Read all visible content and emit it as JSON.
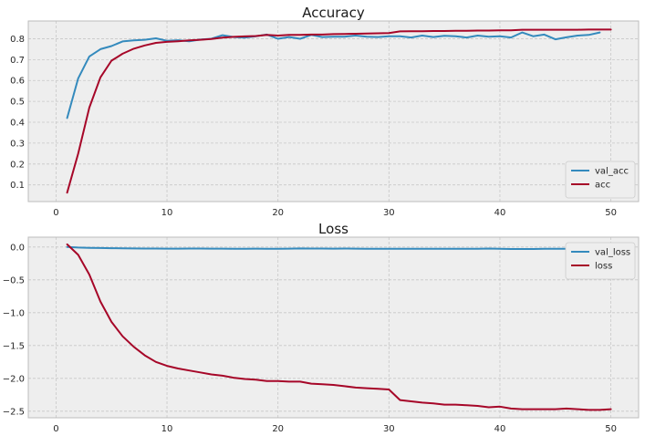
{
  "chart_data": [
    {
      "type": "line",
      "title": "Accuracy",
      "xlabel": "",
      "ylabel": "",
      "xlim": [
        -2.5,
        52.5
      ],
      "ylim": [
        0.02,
        0.885
      ],
      "xticks": [
        0,
        10,
        20,
        30,
        40,
        50
      ],
      "yticks": [
        0.1,
        0.2,
        0.3,
        0.4,
        0.5,
        0.6,
        0.7,
        0.8
      ],
      "grid": true,
      "legend": "bottom-right",
      "series": [
        {
          "name": "val_acc",
          "color": "#348abd",
          "x": [
            1,
            2,
            3,
            4,
            5,
            6,
            7,
            8,
            9,
            10,
            11,
            12,
            13,
            14,
            15,
            16,
            17,
            18,
            19,
            20,
            21,
            22,
            23,
            24,
            25,
            26,
            27,
            28,
            29,
            30,
            31,
            32,
            33,
            34,
            35,
            36,
            37,
            38,
            39,
            40,
            41,
            42,
            43,
            44,
            45,
            46,
            47,
            48,
            49
          ],
          "y": [
            0.42,
            0.61,
            0.715,
            0.75,
            0.765,
            0.787,
            0.792,
            0.795,
            0.802,
            0.79,
            0.793,
            0.788,
            0.796,
            0.8,
            0.817,
            0.808,
            0.805,
            0.812,
            0.82,
            0.8,
            0.808,
            0.8,
            0.818,
            0.808,
            0.81,
            0.81,
            0.815,
            0.81,
            0.808,
            0.812,
            0.812,
            0.806,
            0.815,
            0.808,
            0.814,
            0.812,
            0.806,
            0.815,
            0.81,
            0.812,
            0.806,
            0.83,
            0.812,
            0.82,
            0.797,
            0.807,
            0.815,
            0.818,
            0.83
          ]
        },
        {
          "name": "acc",
          "color": "#a60628",
          "x": [
            1,
            2,
            3,
            4,
            5,
            6,
            7,
            8,
            9,
            10,
            11,
            12,
            13,
            14,
            15,
            16,
            17,
            18,
            19,
            20,
            21,
            22,
            23,
            24,
            25,
            26,
            27,
            28,
            29,
            30,
            31,
            32,
            33,
            34,
            35,
            36,
            37,
            38,
            39,
            40,
            41,
            42,
            43,
            44,
            45,
            46,
            47,
            48,
            49,
            50
          ],
          "y": [
            0.063,
            0.25,
            0.47,
            0.615,
            0.695,
            0.728,
            0.752,
            0.768,
            0.78,
            0.785,
            0.788,
            0.792,
            0.795,
            0.799,
            0.805,
            0.809,
            0.811,
            0.813,
            0.818,
            0.815,
            0.818,
            0.818,
            0.82,
            0.82,
            0.822,
            0.823,
            0.824,
            0.825,
            0.826,
            0.827,
            0.835,
            0.836,
            0.836,
            0.837,
            0.837,
            0.838,
            0.838,
            0.839,
            0.839,
            0.84,
            0.84,
            0.843,
            0.843,
            0.843,
            0.843,
            0.843,
            0.843,
            0.844,
            0.844,
            0.844
          ]
        }
      ]
    },
    {
      "type": "line",
      "title": "Loss",
      "xlabel": "",
      "ylabel": "",
      "xlim": [
        -2.5,
        52.5
      ],
      "ylim": [
        -2.6,
        0.15
      ],
      "xticks": [
        0,
        10,
        20,
        30,
        40,
        50
      ],
      "yticks": [
        0.0,
        -0.5,
        -1.0,
        -1.5,
        -2.0,
        -2.5
      ],
      "ytick_labels": [
        "0.0",
        "−0.5",
        "−1.0",
        "−1.5",
        "−2.0",
        "−2.5"
      ],
      "grid": true,
      "legend": "top-right",
      "series": [
        {
          "name": "val_loss",
          "color": "#348abd",
          "x": [
            1,
            2,
            3,
            4,
            5,
            6,
            7,
            8,
            9,
            10,
            11,
            12,
            13,
            14,
            15,
            16,
            17,
            18,
            19,
            20,
            21,
            22,
            23,
            24,
            25,
            26,
            27,
            28,
            29,
            30,
            31,
            32,
            33,
            34,
            35,
            36,
            37,
            38,
            39,
            40,
            41,
            42,
            43,
            44,
            45,
            46,
            47,
            48,
            49,
            50
          ],
          "y": [
            0.0,
            -0.008,
            -0.012,
            -0.015,
            -0.018,
            -0.02,
            -0.022,
            -0.023,
            -0.024,
            -0.025,
            -0.025,
            -0.024,
            -0.024,
            -0.025,
            -0.025,
            -0.026,
            -0.026,
            -0.025,
            -0.026,
            -0.026,
            -0.025,
            -0.022,
            -0.024,
            -0.024,
            -0.025,
            -0.023,
            -0.025,
            -0.026,
            -0.026,
            -0.026,
            -0.027,
            -0.028,
            -0.028,
            -0.026,
            -0.028,
            -0.027,
            -0.028,
            -0.028,
            -0.024,
            -0.028,
            -0.03,
            -0.03,
            -0.03,
            -0.028,
            -0.028,
            -0.026,
            -0.027,
            -0.026,
            -0.025,
            -0.025
          ]
        },
        {
          "name": "loss",
          "color": "#a60628",
          "x": [
            1,
            2,
            3,
            4,
            5,
            6,
            7,
            8,
            9,
            10,
            11,
            12,
            13,
            14,
            15,
            16,
            17,
            18,
            19,
            20,
            21,
            22,
            23,
            24,
            25,
            26,
            27,
            28,
            29,
            30,
            31,
            32,
            33,
            34,
            35,
            36,
            37,
            38,
            39,
            40,
            41,
            42,
            43,
            44,
            45,
            46,
            47,
            48,
            49,
            50
          ],
          "y": [
            0.04,
            -0.12,
            -0.42,
            -0.83,
            -1.14,
            -1.36,
            -1.52,
            -1.65,
            -1.75,
            -1.81,
            -1.85,
            -1.88,
            -1.91,
            -1.94,
            -1.96,
            -1.99,
            -2.01,
            -2.02,
            -2.04,
            -2.04,
            -2.05,
            -2.05,
            -2.08,
            -2.09,
            -2.1,
            -2.12,
            -2.14,
            -2.15,
            -2.16,
            -2.17,
            -2.33,
            -2.35,
            -2.37,
            -2.38,
            -2.4,
            -2.4,
            -2.41,
            -2.42,
            -2.44,
            -2.43,
            -2.46,
            -2.47,
            -2.47,
            -2.47,
            -2.47,
            -2.46,
            -2.47,
            -2.48,
            -2.48,
            -2.47
          ]
        }
      ]
    }
  ]
}
